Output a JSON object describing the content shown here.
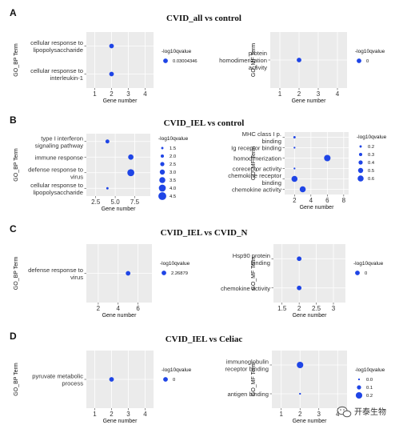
{
  "sections": [
    {
      "letter": "A",
      "title": "CVID_all vs control",
      "charts": [
        {
          "type": "scatter",
          "ylabel": "GO_BP Term",
          "xlabel": "Gene number",
          "xticks": [
            "1",
            "2",
            "3",
            "4"
          ],
          "xlim": [
            0.5,
            4.5
          ],
          "terms": [
            "cellular response to\nlipopolysaccharide",
            "cellular response to\ninterleukin-1"
          ],
          "points": [
            {
              "term": 0,
              "x": 2,
              "size": 2
            },
            {
              "term": 1,
              "x": 2,
              "size": 2
            }
          ],
          "legend_title": "-log10qvalue",
          "legend_items": [
            {
              "label": "0.03004346",
              "size": 2
            }
          ]
        },
        {
          "type": "scatter",
          "ylabel": "GO_MF Term",
          "xlabel": "Gene number",
          "xticks": [
            "1",
            "2",
            "3",
            "4"
          ],
          "xlim": [
            0.5,
            4.5
          ],
          "terms": [
            "protein\nhomodimerization\nactivity"
          ],
          "points": [
            {
              "term": 0,
              "x": 2,
              "size": 2
            }
          ],
          "legend_title": "-log10qvalue",
          "legend_items": [
            {
              "label": "0",
              "size": 2
            }
          ]
        }
      ]
    },
    {
      "letter": "B",
      "title": "CVID_IEL vs control",
      "charts": [
        {
          "type": "scatter",
          "ylabel": "GO_BP Term",
          "xlabel": "Gene number",
          "xticks": [
            "2.5",
            "5.0",
            "7.5"
          ],
          "xlim": [
            1.3,
            9.5
          ],
          "terms": [
            "type I interferon\nsignaling pathway",
            "immune response",
            "defense response to\nvirus",
            "cellular response to\nlipopolysaccharide"
          ],
          "points": [
            {
              "term": 0,
              "x": 4,
              "size": 1.7
            },
            {
              "term": 1,
              "x": 7,
              "size": 2.3
            },
            {
              "term": 2,
              "x": 7,
              "size": 3.0
            },
            {
              "term": 3,
              "x": 4,
              "size": 1.0
            }
          ],
          "legend_title": "-log10qvalue",
          "legend_items": [
            {
              "label": "1.5",
              "size": 1.0
            },
            {
              "label": "2.0",
              "size": 1.4
            },
            {
              "label": "2.5",
              "size": 1.8
            },
            {
              "label": "3.0",
              "size": 2.2
            },
            {
              "label": "3.5",
              "size": 2.6
            },
            {
              "label": "4.0",
              "size": 3.0
            },
            {
              "label": "4.5",
              "size": 3.4
            }
          ]
        },
        {
          "type": "scatter",
          "ylabel": "GO_MF Term",
          "xlabel": "Gene number",
          "xticks": [
            "2",
            "4",
            "6",
            "8"
          ],
          "xlim": [
            0.8,
            8.6
          ],
          "terms": [
            "MHC class I p.\nbinding",
            "Ig receptor binding",
            "homodimerization",
            "coreceptor activity",
            "chemokine receptor\nbinding",
            "chemokine activity"
          ],
          "points": [
            {
              "term": 0,
              "x": 2,
              "size": 1.0
            },
            {
              "term": 1,
              "x": 2,
              "size": 0.8
            },
            {
              "term": 2,
              "x": 6,
              "size": 2.8
            },
            {
              "term": 3,
              "x": 2,
              "size": 0.8
            },
            {
              "term": 4,
              "x": 2,
              "size": 2.6
            },
            {
              "term": 5,
              "x": 3,
              "size": 2.6
            }
          ],
          "legend_title": "-log10qvalue",
          "legend_items": [
            {
              "label": "0.2",
              "size": 1.0
            },
            {
              "label": "0.3",
              "size": 1.4
            },
            {
              "label": "0.4",
              "size": 1.8
            },
            {
              "label": "0.5",
              "size": 2.2
            },
            {
              "label": "0.6",
              "size": 2.6
            }
          ]
        }
      ]
    },
    {
      "letter": "C",
      "title": "CVID_IEL vs CVID_N",
      "charts": [
        {
          "type": "scatter",
          "ylabel": "GO_BP Term",
          "xlabel": "Gene number",
          "xticks": [
            "2",
            "4",
            "6"
          ],
          "xlim": [
            0.8,
            7.4
          ],
          "terms": [
            "defense response to\nvirus"
          ],
          "points": [
            {
              "term": 0,
              "x": 5,
              "size": 2
            }
          ],
          "legend_title": "-log10qvalue",
          "legend_items": [
            {
              "label": "2.26879",
              "size": 2
            }
          ]
        },
        {
          "type": "scatter",
          "ylabel": "GO_MF Term",
          "xlabel": "Gene number",
          "xticks": [
            "1.5",
            "2",
            "2.5",
            "3"
          ],
          "xlim": [
            1.25,
            3.35
          ],
          "terms": [
            "Hsp90 protein\nbinding",
            "chemokine activity"
          ],
          "points": [
            {
              "term": 0,
              "x": 2,
              "size": 2
            },
            {
              "term": 1,
              "x": 2,
              "size": 2
            }
          ],
          "legend_title": "-log10qvalue",
          "legend_items": [
            {
              "label": "0",
              "size": 2
            }
          ]
        }
      ]
    },
    {
      "letter": "D",
      "title": "CVID_IEL vs Celiac",
      "charts": [
        {
          "type": "scatter",
          "ylabel": "GO_BP Term",
          "xlabel": "Gene number",
          "xticks": [
            "1",
            "2",
            "3",
            "4"
          ],
          "xlim": [
            0.5,
            4.5
          ],
          "terms": [
            "pyruvate metabolic\nprocess"
          ],
          "points": [
            {
              "term": 0,
              "x": 2,
              "size": 2
            }
          ],
          "legend_title": "-log10qvalue",
          "legend_items": [
            {
              "label": "0",
              "size": 2
            }
          ]
        },
        {
          "type": "scatter",
          "ylabel": "GO_MF Term",
          "xlabel": "Gene number",
          "xticks": [
            "1",
            "2",
            "3",
            "4"
          ],
          "xlim": [
            0.5,
            4.5
          ],
          "terms": [
            "immunoglobulin\nreceptor binding",
            "antigen binding"
          ],
          "points": [
            {
              "term": 0,
              "x": 2,
              "size": 2.8
            },
            {
              "term": 1,
              "x": 2,
              "size": 0.8
            }
          ],
          "legend_title": "-log10qvalue",
          "legend_items": [
            {
              "label": "0.0",
              "size": 0.8
            },
            {
              "label": "0.1",
              "size": 1.8
            },
            {
              "label": "0.2",
              "size": 2.8
            }
          ]
        }
      ]
    }
  ],
  "watermark": {
    "text": "开泰生物",
    "icon": "wechat-icon"
  }
}
